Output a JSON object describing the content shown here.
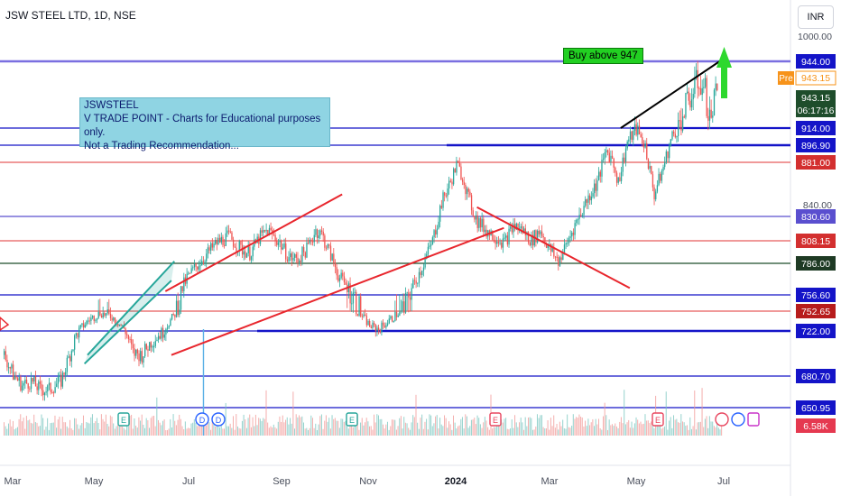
{
  "header": {
    "symbol_line": "JSW STEEL LTD, 1D, NSE"
  },
  "currency_button": "INR",
  "annotations": {
    "note_lines": [
      "JSWSTEEL",
      "V TRADE POINT - Charts for Educational purposes only.",
      "Not a Trading Recommendation..."
    ],
    "buy_label": "Buy above 947"
  },
  "colors": {
    "up": "#26a69a",
    "down": "#ef5350",
    "blue_level": "#1414c8",
    "red_level": "#e85c5c",
    "dark_green_level": "#1e4d2b",
    "purple_level": "#7a6fe0",
    "arrow": "#2ed82e",
    "note_bg": "#8fd4e3",
    "buy_bg": "#22d022"
  },
  "chart_data": {
    "type": "candlestick",
    "title": "JSW STEEL LTD, 1D, NSE",
    "x_ticks": [
      "Mar",
      "May",
      "Jul",
      "Sep",
      "Nov",
      "2024",
      "Mar",
      "May",
      "Jul"
    ],
    "y_ticks": [
      1000.0,
      840.0
    ],
    "ylim": [
      630,
      1010
    ],
    "scale": "log",
    "price_labels": [
      {
        "value": "944.00",
        "color": "#1414c8",
        "style": "solid"
      },
      {
        "value": "943.15",
        "color": "#f7931a",
        "style": "outline",
        "prefix": "Pre"
      },
      {
        "value": "943.15",
        "color": "#1e4d2b",
        "style": "solid",
        "extra": "06:17:16"
      },
      {
        "value": "914.00",
        "color": "#1414c8",
        "style": "solid"
      },
      {
        "value": "896.90",
        "color": "#1414c8",
        "style": "solid"
      },
      {
        "value": "881.00",
        "color": "#d32f2f",
        "style": "solid"
      },
      {
        "value": "830.60",
        "color": "#5a4fcf",
        "style": "solid"
      },
      {
        "value": "808.15",
        "color": "#d32f2f",
        "style": "solid"
      },
      {
        "value": "786.00",
        "color": "#1e3a24",
        "style": "solid"
      },
      {
        "value": "756.60",
        "color": "#1414c8",
        "style": "solid"
      },
      {
        "value": "752.65",
        "color": "#b71c1c",
        "style": "solid"
      },
      {
        "value": "722.00",
        "color": "#1414c8",
        "style": "solid"
      },
      {
        "value": "680.70",
        "color": "#1414c8",
        "style": "solid"
      },
      {
        "value": "650.95",
        "color": "#1414c8",
        "style": "solid"
      },
      {
        "value": "6.58K",
        "color": "#e53950",
        "style": "solid"
      }
    ],
    "levels": [
      {
        "value": 944.0,
        "color": "#7a6fe0"
      },
      {
        "value": 914.0,
        "color": "#1414c8"
      },
      {
        "value": 896.9,
        "color": "#1414c8"
      },
      {
        "value": 881.0,
        "color": "#e85c5c"
      },
      {
        "value": 830.6,
        "color": "#5a4fcf"
      },
      {
        "value": 808.15,
        "color": "#e85c5c"
      },
      {
        "value": 786.0,
        "color": "#1e4d2b"
      },
      {
        "value": 756.6,
        "color": "#1414c8"
      },
      {
        "value": 752.65,
        "color": "#e85c5c"
      },
      {
        "value": 722.0,
        "color": "#1414c8"
      },
      {
        "value": 680.7,
        "color": "#1414c8"
      },
      {
        "value": 650.95,
        "color": "#1414c8"
      }
    ],
    "price_path": [
      [
        0,
        700
      ],
      [
        6,
        682
      ],
      [
        12,
        672
      ],
      [
        18,
        676
      ],
      [
        24,
        668
      ],
      [
        30,
        668
      ],
      [
        38,
        676
      ],
      [
        48,
        718
      ],
      [
        56,
        738
      ],
      [
        64,
        750
      ],
      [
        72,
        744
      ],
      [
        80,
        726
      ],
      [
        86,
        702
      ],
      [
        92,
        700
      ],
      [
        98,
        712
      ],
      [
        106,
        722
      ],
      [
        114,
        748
      ],
      [
        122,
        772
      ],
      [
        132,
        790
      ],
      [
        142,
        806
      ],
      [
        150,
        812
      ],
      [
        158,
        800
      ],
      [
        164,
        796
      ],
      [
        170,
        810
      ],
      [
        176,
        818
      ],
      [
        184,
        806
      ],
      [
        190,
        792
      ],
      [
        196,
        790
      ],
      [
        202,
        800
      ],
      [
        208,
        818
      ],
      [
        212,
        814
      ],
      [
        218,
        794
      ],
      [
        224,
        772
      ],
      [
        232,
        760
      ],
      [
        238,
        748
      ],
      [
        244,
        730
      ],
      [
        250,
        725
      ],
      [
        256,
        736
      ],
      [
        262,
        748
      ],
      [
        268,
        752
      ],
      [
        274,
        768
      ],
      [
        280,
        786
      ],
      [
        286,
        808
      ],
      [
        292,
        842
      ],
      [
        298,
        862
      ],
      [
        302,
        878
      ],
      [
        306,
        868
      ],
      [
        310,
        846
      ],
      [
        316,
        826
      ],
      [
        322,
        818
      ],
      [
        328,
        812
      ],
      [
        334,
        806
      ],
      [
        340,
        822
      ],
      [
        346,
        818
      ],
      [
        352,
        808
      ],
      [
        358,
        818
      ],
      [
        364,
        800
      ],
      [
        370,
        788
      ],
      [
        374,
        800
      ],
      [
        380,
        820
      ],
      [
        388,
        842
      ],
      [
        396,
        862
      ],
      [
        402,
        892
      ],
      [
        406,
        884
      ],
      [
        410,
        862
      ],
      [
        416,
        900
      ],
      [
        422,
        912
      ],
      [
        428,
        896
      ],
      [
        434,
        850
      ],
      [
        440,
        876
      ],
      [
        446,
        906
      ],
      [
        452,
        918
      ],
      [
        458,
        928
      ],
      [
        464,
        936
      ],
      [
        468,
        930
      ],
      [
        471,
        918
      ],
      [
        474,
        926
      ],
      [
        477,
        943.15
      ]
    ],
    "trend_lines": [
      {
        "from": [
          54,
          692
        ],
        "to": [
          112,
          770
        ],
        "color": "#26a69a"
      },
      {
        "from": [
          56,
          700
        ],
        "to": [
          114,
          788
        ],
        "color": "#26a69a"
      },
      {
        "from": [
          108,
          760
        ],
        "to": [
          226,
          850
        ],
        "color": "#e8262d"
      },
      {
        "from": [
          112,
          700
        ],
        "to": [
          334,
          820
        ],
        "color": "#e8262d"
      },
      {
        "from": [
          316,
          838
        ],
        "to": [
          418,
          763
        ],
        "color": "#e8262d"
      },
      {
        "from": [
          412,
          914
        ],
        "to": [
          478,
          944
        ],
        "color": "#000000"
      }
    ],
    "volume": {
      "max_label": "6.58K"
    }
  }
}
